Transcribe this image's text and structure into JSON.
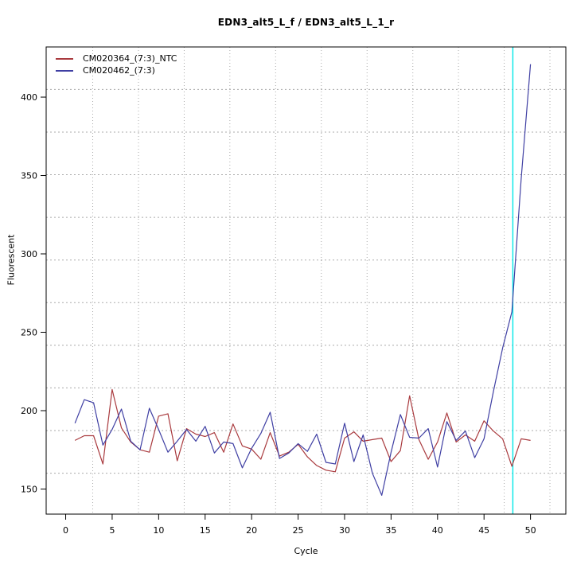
{
  "title": "EDN3_alt5_L_f / EDN3_alt5_L_1_r",
  "axes": {
    "x_label": "Cycle",
    "y_label": "Fluorescent"
  },
  "legend": [
    {
      "label": "CM020364_(7:3)_NTC",
      "color": "#A93A3E"
    },
    {
      "label": "CM020462_(7:3)",
      "color": "#3F3FA3"
    }
  ],
  "chart_data": {
    "type": "line",
    "title": "EDN3_alt5_L_f / EDN3_alt5_L_1_r",
    "xlabel": "Cycle",
    "ylabel": "Fluorescent",
    "xlim": [
      -2.1,
      53.8
    ],
    "ylim": [
      134,
      432
    ],
    "x_ticks": [
      0,
      5,
      10,
      15,
      20,
      25,
      30,
      35,
      40,
      45,
      50
    ],
    "y_ticks": [
      150,
      200,
      250,
      300,
      350,
      400
    ],
    "grid": {
      "color": "#ABABAB",
      "x_lines": [
        2.91,
        7.83,
        12.75,
        17.66,
        22.58,
        27.5,
        32.42,
        37.34,
        42.25,
        47.17,
        52.09
      ],
      "y_lines": [
        160.1,
        187.3,
        214.5,
        241.7,
        268.9,
        296.1,
        323.3,
        350.5,
        377.7,
        404.9
      ]
    },
    "threshold_line": {
      "x": 48.1,
      "color": "#00E8E8"
    },
    "x": [
      1,
      2,
      3,
      4,
      5,
      6,
      7,
      8,
      9,
      10,
      11,
      12,
      13,
      14,
      15,
      16,
      17,
      18,
      19,
      20,
      21,
      22,
      23,
      24,
      25,
      26,
      27,
      28,
      29,
      30,
      31,
      32,
      33,
      34,
      35,
      36,
      37,
      38,
      39,
      40,
      41,
      42,
      43,
      44,
      45,
      46,
      47,
      48,
      49,
      50
    ],
    "series": [
      {
        "name": "CM020364_(7:3)_NTC",
        "color": "#A93A3E",
        "values": [
          181,
          184,
          184,
          166,
          213.5,
          189,
          180,
          175,
          173.5,
          196.5,
          198,
          168,
          188.5,
          185,
          183.5,
          186,
          173.5,
          191.5,
          177.5,
          175.5,
          169,
          186,
          171,
          173.5,
          178.5,
          170.5,
          165,
          162,
          161,
          182.5,
          186.5,
          180.5,
          181.5,
          182.5,
          167.5,
          174.5,
          209.5,
          181.5,
          169,
          180,
          198.5,
          180,
          184.5,
          180.5,
          193.5,
          187,
          182,
          164.5,
          182,
          181
        ]
      },
      {
        "name": "CM020462_(7:3)",
        "color": "#3F3FA3",
        "values": [
          192,
          207,
          205,
          178,
          188,
          201,
          180.5,
          175,
          201.5,
          188,
          173.5,
          180.5,
          188,
          180.5,
          190,
          173,
          180,
          179,
          163.5,
          176,
          185.5,
          199,
          169.5,
          173,
          179,
          174,
          185,
          167,
          166,
          192,
          167.5,
          184.5,
          160,
          146,
          173.5,
          197.5,
          183,
          182.5,
          188.5,
          164,
          193,
          181,
          187,
          170,
          182,
          212,
          240,
          263,
          348,
          421
        ]
      }
    ],
    "legend_position": "top-left",
    "grid_on": true
  }
}
